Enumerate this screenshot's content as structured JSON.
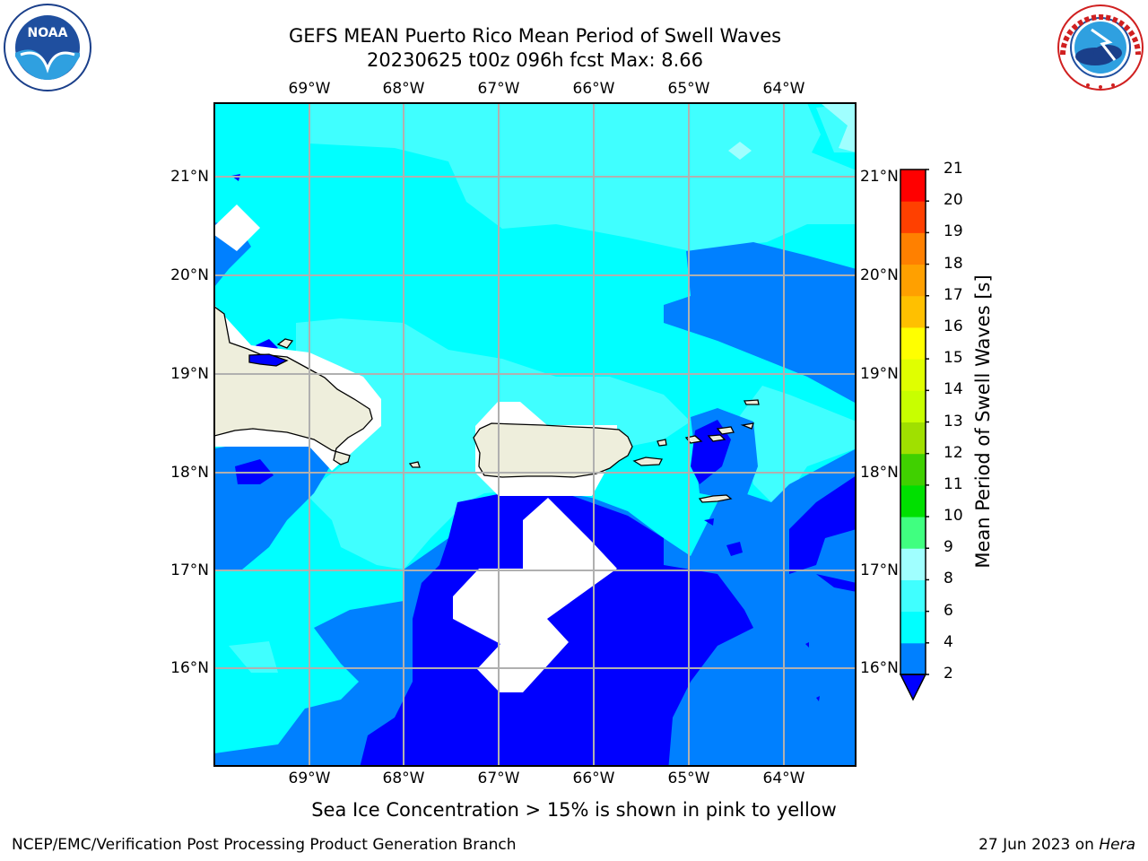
{
  "title": {
    "line1": "GEFS MEAN Puerto Rico Mean Period of Swell Waves",
    "line2": "20230625 t00z 096h fcst   Max: 8.66"
  },
  "logos": {
    "left": {
      "text": "NOAA",
      "ring_text": "NATIONAL OCEANIC AND ATMOSPHERIC ADMINISTRATION · U.S. DEPARTMENT OF COMMERCE",
      "icon": "noaa-logo"
    },
    "right": {
      "ring_text": "NATIONAL WEATHER SERVICE",
      "icon": "nws-logo"
    }
  },
  "map": {
    "region": "Puerto Rico",
    "lon_labels": [
      "69°W",
      "68°W",
      "67°W",
      "66°W",
      "65°W",
      "64°W"
    ],
    "lat_labels": [
      "21°N",
      "20°N",
      "19°N",
      "18°N",
      "17°N",
      "16°N"
    ],
    "land_labels": [
      "Hispaniola",
      "Puerto Rico",
      "Virgin Islands"
    ]
  },
  "colorbar": {
    "label": "Mean Period of Swell Waves [s]",
    "ticks": [
      "2",
      "4",
      "6",
      "8",
      "9",
      "10",
      "11",
      "12",
      "13",
      "14",
      "15",
      "16",
      "17",
      "18",
      "19",
      "20",
      "21"
    ],
    "colors": [
      "#0000ff",
      "#0080ff",
      "#00ffff",
      "#40ffff",
      "#a0ffff",
      "#40ff80",
      "#00e000",
      "#40d000",
      "#a0e000",
      "#c8ff00",
      "#e0ff00",
      "#ffff00",
      "#ffc000",
      "#ffa000",
      "#ff8000",
      "#ff4000",
      "#ff0000"
    ]
  },
  "footer": {
    "note": "Sea Ice Concentration > 15% is shown in pink to yellow",
    "left": "NCEP/EMC/Verification Post Processing Product Generation Branch",
    "right_prefix": "27 Jun 2023 on ",
    "right_host": "Hera"
  }
}
